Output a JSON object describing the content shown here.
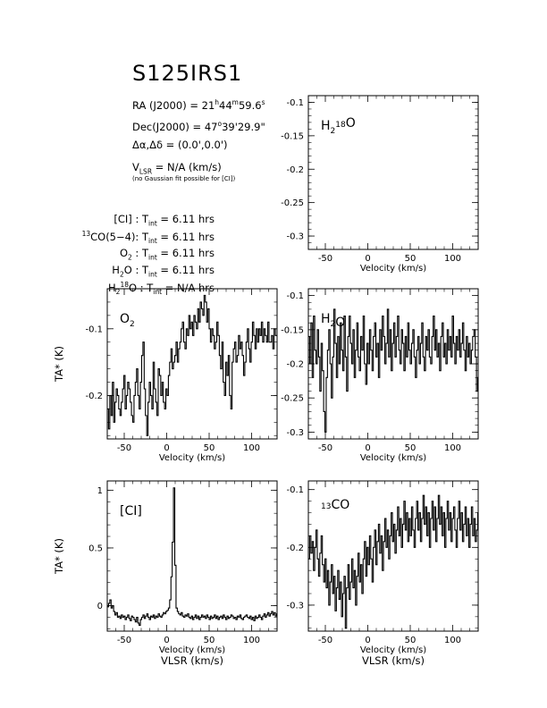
{
  "title": "S125IRS1",
  "info": {
    "ra_label": "RA (J2000) = 21",
    "ra_h": "h",
    "ra_mid": "44",
    "ra_m": "m",
    "ra_sec": "59.6",
    "ra_s": "s",
    "dec_label": "Dec(J2000) = 47",
    "dec_deg": "o",
    "dec_rest": "39'29.9\"",
    "offset": "Δα,Δδ = (0.0',0.0')",
    "vlsr_v": "V",
    "vlsr_sub": "LSR",
    "vlsr_rest": " = N/A  (km/s)",
    "note": "(no Gaussian fit possible for [CI])",
    "tint_rows": [
      {
        "species": "[CI] : T",
        "sub": "int",
        "value": " = 6.11 hrs"
      },
      {
        "species_sup": "13",
        "species": "CO(5−4): T",
        "sub": "int",
        "value": " = 6.11 hrs"
      },
      {
        "species": "O",
        "species_sub": "2",
        "species_after": " : T",
        "sub": "int",
        "value": " = 6.11 hrs"
      },
      {
        "species": "H",
        "species_sub": "2",
        "species_after": "O : T",
        "sub": "int",
        "value": " = 6.11 hrs"
      },
      {
        "species": "H",
        "species_sub": "2",
        "species_sup": "18",
        "species_after": "O : T",
        "sub": "int",
        "value": " = N/A hrs"
      }
    ]
  },
  "chart_data": [
    {
      "id": "h218o",
      "type": "line",
      "label": "H218O",
      "xlabel": "Velocity (km/s)",
      "ylabel": "",
      "xlim": [
        -70,
        130
      ],
      "ylim": [
        -0.32,
        -0.09
      ],
      "xticks": [
        -50,
        0,
        50,
        100
      ],
      "yticks": [
        -0.1,
        -0.15,
        -0.2,
        -0.25,
        -0.3
      ],
      "series": []
    },
    {
      "id": "o2",
      "type": "line",
      "label": "O2",
      "xlabel": "Velocity (km/s)",
      "ylabel": "TA* (K)",
      "xlim": [
        -70,
        130
      ],
      "ylim": [
        -0.265,
        -0.04
      ],
      "xticks": [
        -50,
        0,
        50,
        100
      ],
      "yticks": [
        -0.1,
        -0.2
      ],
      "series": [
        {
          "x_start": -70,
          "x_step": 1.5,
          "values": [
            -0.22,
            -0.25,
            -0.2,
            -0.23,
            -0.18,
            -0.24,
            -0.21,
            -0.19,
            -0.2,
            -0.22,
            -0.23,
            -0.21,
            -0.19,
            -0.17,
            -0.22,
            -0.2,
            -0.18,
            -0.19,
            -0.21,
            -0.23,
            -0.24,
            -0.2,
            -0.18,
            -0.16,
            -0.2,
            -0.22,
            -0.18,
            -0.14,
            -0.12,
            -0.19,
            -0.23,
            -0.26,
            -0.21,
            -0.18,
            -0.2,
            -0.22,
            -0.15,
            -0.19,
            -0.21,
            -0.23,
            -0.16,
            -0.17,
            -0.2,
            -0.18,
            -0.21,
            -0.22,
            -0.19,
            -0.2,
            -0.17,
            -0.15,
            -0.13,
            -0.16,
            -0.15,
            -0.14,
            -0.12,
            -0.15,
            -0.13,
            -0.12,
            -0.1,
            -0.09,
            -0.12,
            -0.13,
            -0.1,
            -0.11,
            -0.08,
            -0.1,
            -0.09,
            -0.11,
            -0.08,
            -0.09,
            -0.1,
            -0.07,
            -0.09,
            -0.06,
            -0.07,
            -0.08,
            -0.05,
            -0.06,
            -0.09,
            -0.07,
            -0.1,
            -0.12,
            -0.1,
            -0.11,
            -0.13,
            -0.12,
            -0.09,
            -0.11,
            -0.14,
            -0.16,
            -0.12,
            -0.18,
            -0.2,
            -0.15,
            -0.17,
            -0.14,
            -0.2,
            -0.22,
            -0.15,
            -0.13,
            -0.12,
            -0.15,
            -0.14,
            -0.11,
            -0.13,
            -0.12,
            -0.14,
            -0.17,
            -0.15,
            -0.12,
            -0.1,
            -0.13,
            -0.15,
            -0.12,
            -0.09,
            -0.11,
            -0.13,
            -0.1,
            -0.12,
            -0.1,
            -0.11,
            -0.09,
            -0.12,
            -0.1,
            -0.11,
            -0.12,
            -0.09,
            -0.12,
            -0.12,
            -0.11,
            -0.13,
            -0.1,
            -0.11
          ]
        }
      ]
    },
    {
      "id": "h2o",
      "type": "line",
      "label": "H2O",
      "xlabel": "Velocity (km/s)",
      "ylabel": "",
      "xlim": [
        -70,
        130
      ],
      "ylim": [
        -0.31,
        -0.09
      ],
      "xticks": [
        -50,
        0,
        50,
        100
      ],
      "yticks": [
        -0.1,
        -0.15,
        -0.2,
        -0.25,
        -0.3
      ],
      "series": [
        {
          "x_start": -70,
          "x_step": 1.5,
          "values": [
            -0.16,
            -0.2,
            -0.14,
            -0.22,
            -0.13,
            -0.18,
            -0.2,
            -0.15,
            -0.19,
            -0.24,
            -0.17,
            -0.21,
            -0.27,
            -0.3,
            -0.22,
            -0.18,
            -0.15,
            -0.2,
            -0.25,
            -0.19,
            -0.12,
            -0.17,
            -0.22,
            -0.16,
            -0.2,
            -0.14,
            -0.18,
            -0.21,
            -0.13,
            -0.19,
            -0.24,
            -0.16,
            -0.13,
            -0.17,
            -0.2,
            -0.15,
            -0.22,
            -0.18,
            -0.14,
            -0.19,
            -0.21,
            -0.16,
            -0.18,
            -0.13,
            -0.2,
            -0.23,
            -0.17,
            -0.2,
            -0.15,
            -0.18,
            -0.21,
            -0.16,
            -0.14,
            -0.19,
            -0.17,
            -0.22,
            -0.15,
            -0.18,
            -0.13,
            -0.16,
            -0.2,
            -0.17,
            -0.12,
            -0.19,
            -0.15,
            -0.21,
            -0.17,
            -0.14,
            -0.19,
            -0.16,
            -0.13,
            -0.18,
            -0.2,
            -0.15,
            -0.17,
            -0.21,
            -0.16,
            -0.19,
            -0.14,
            -0.18,
            -0.2,
            -0.17,
            -0.15,
            -0.19,
            -0.22,
            -0.18,
            -0.16,
            -0.2,
            -0.17,
            -0.14,
            -0.19,
            -0.21,
            -0.16,
            -0.18,
            -0.15,
            -0.19,
            -0.2,
            -0.16,
            -0.13,
            -0.18,
            -0.15,
            -0.19,
            -0.17,
            -0.21,
            -0.16,
            -0.14,
            -0.19,
            -0.17,
            -0.2,
            -0.15,
            -0.18,
            -0.16,
            -0.19,
            -0.13,
            -0.17,
            -0.2,
            -0.16,
            -0.18,
            -0.15,
            -0.19,
            -0.17,
            -0.14,
            -0.18,
            -0.21,
            -0.16,
            -0.19,
            -0.17,
            -0.2,
            -0.18,
            -0.16,
            -0.15,
            -0.19,
            -0.24,
            -0.22
          ]
        }
      ]
    },
    {
      "id": "ci",
      "type": "line",
      "label": "[CI]",
      "xlabel": "Velocity (km/s)",
      "xlabel2": "VLSR (km/s)",
      "ylabel": "TA* (K)",
      "xlim": [
        -70,
        130
      ],
      "ylim": [
        -0.22,
        1.08
      ],
      "xticks": [
        -50,
        0,
        50,
        100
      ],
      "yticks": [
        0,
        0.5,
        1
      ],
      "series": [
        {
          "x_start": -70,
          "x_step": 1.5,
          "values": [
            -0.01,
            0.02,
            0.05,
            -0.02,
            0.0,
            -0.05,
            -0.08,
            -0.06,
            -0.1,
            -0.09,
            -0.11,
            -0.08,
            -0.1,
            -0.09,
            -0.12,
            -0.1,
            -0.08,
            -0.11,
            -0.13,
            -0.09,
            -0.1,
            -0.12,
            -0.14,
            -0.1,
            -0.15,
            -0.17,
            -0.12,
            -0.1,
            -0.08,
            -0.11,
            -0.09,
            -0.07,
            -0.1,
            -0.12,
            -0.09,
            -0.1,
            -0.08,
            -0.11,
            -0.09,
            -0.1,
            -0.07,
            -0.09,
            -0.1,
            -0.08,
            -0.06,
            -0.07,
            -0.05,
            -0.04,
            -0.02,
            0.05,
            0.25,
            0.55,
            1.02,
            0.35,
            -0.02,
            -0.05,
            -0.07,
            -0.08,
            -0.06,
            -0.09,
            -0.1,
            -0.08,
            -0.09,
            -0.07,
            -0.1,
            -0.11,
            -0.09,
            -0.12,
            -0.1,
            -0.08,
            -0.11,
            -0.09,
            -0.12,
            -0.1,
            -0.08,
            -0.1,
            -0.09,
            -0.11,
            -0.08,
            -0.1,
            -0.12,
            -0.09,
            -0.11,
            -0.1,
            -0.08,
            -0.11,
            -0.09,
            -0.12,
            -0.1,
            -0.09,
            -0.11,
            -0.08,
            -0.1,
            -0.12,
            -0.09,
            -0.11,
            -0.1,
            -0.08,
            -0.09,
            -0.11,
            -0.1,
            -0.12,
            -0.09,
            -0.1,
            -0.08,
            -0.11,
            -0.12,
            -0.1,
            -0.09,
            -0.08,
            -0.1,
            -0.11,
            -0.09,
            -0.12,
            -0.1,
            -0.13,
            -0.09,
            -0.11,
            -0.1,
            -0.08,
            -0.1,
            -0.12,
            -0.09,
            -0.07,
            -0.1,
            -0.08,
            -0.06,
            -0.09,
            -0.07,
            -0.05,
            -0.08,
            -0.06,
            -0.09,
            -0.07
          ]
        }
      ]
    },
    {
      "id": "13co",
      "type": "line",
      "label": "13CO",
      "xlabel": "Velocity (km/s)",
      "xlabel2": "VLSR (km/s)",
      "ylabel": "",
      "xlim": [
        -70,
        130
      ],
      "ylim": [
        -0.345,
        -0.085
      ],
      "xticks": [
        -50,
        0,
        50,
        100
      ],
      "yticks": [
        -0.1,
        -0.2,
        -0.3
      ],
      "series": [
        {
          "x_start": -70,
          "x_step": 1.5,
          "values": [
            -0.22,
            -0.18,
            -0.21,
            -0.19,
            -0.24,
            -0.2,
            -0.17,
            -0.22,
            -0.25,
            -0.21,
            -0.18,
            -0.23,
            -0.26,
            -0.22,
            -0.27,
            -0.24,
            -0.3,
            -0.26,
            -0.23,
            -0.28,
            -0.25,
            -0.31,
            -0.27,
            -0.24,
            -0.29,
            -0.26,
            -0.32,
            -0.28,
            -0.25,
            -0.34,
            -0.27,
            -0.23,
            -0.29,
            -0.26,
            -0.22,
            -0.27,
            -0.24,
            -0.3,
            -0.25,
            -0.21,
            -0.26,
            -0.23,
            -0.28,
            -0.22,
            -0.19,
            -0.25,
            -0.2,
            -0.23,
            -0.18,
            -0.22,
            -0.26,
            -0.2,
            -0.17,
            -0.23,
            -0.19,
            -0.16,
            -0.21,
            -0.18,
            -0.24,
            -0.19,
            -0.15,
            -0.2,
            -0.17,
            -0.22,
            -0.18,
            -0.14,
            -0.19,
            -0.16,
            -0.21,
            -0.17,
            -0.13,
            -0.18,
            -0.15,
            -0.2,
            -0.16,
            -0.12,
            -0.17,
            -0.14,
            -0.19,
            -0.15,
            -0.18,
            -0.13,
            -0.17,
            -0.2,
            -0.15,
            -0.12,
            -0.17,
            -0.14,
            -0.19,
            -0.15,
            -0.11,
            -0.16,
            -0.13,
            -0.18,
            -0.14,
            -0.2,
            -0.15,
            -0.12,
            -0.17,
            -0.13,
            -0.19,
            -0.15,
            -0.11,
            -0.16,
            -0.13,
            -0.18,
            -0.14,
            -0.2,
            -0.15,
            -0.12,
            -0.17,
            -0.14,
            -0.19,
            -0.15,
            -0.13,
            -0.17,
            -0.2,
            -0.15,
            -0.12,
            -0.17,
            -0.14,
            -0.19,
            -0.16,
            -0.13,
            -0.18,
            -0.15,
            -0.2,
            -0.16,
            -0.13,
            -0.18,
            -0.15,
            -0.19,
            -0.17,
            -0.14
          ]
        }
      ]
    }
  ]
}
